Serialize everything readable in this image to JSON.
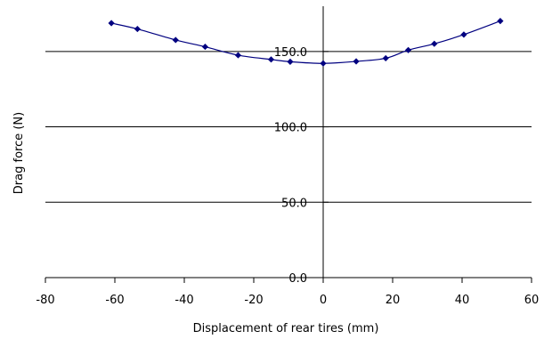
{
  "chart_data": {
    "type": "line",
    "xlabel": "Displacement of rear tires (mm)",
    "ylabel": "Drag force (N)",
    "xlim": [
      -80,
      60
    ],
    "ylim": [
      0,
      180
    ],
    "x_ticks": [
      -80,
      -60,
      -40,
      -20,
      0,
      20,
      40,
      60
    ],
    "x_tick_labels": [
      "-80",
      "-60",
      "-40",
      "-20",
      "0",
      "20",
      "40",
      "60"
    ],
    "y_ticks": [
      0,
      50,
      100,
      150
    ],
    "y_tick_labels": [
      "0.0",
      "50.0",
      "100.0",
      "150.0"
    ],
    "grid": "horizontal",
    "legend": "none",
    "series_color": "#000080",
    "marker": "diamond",
    "series": [
      {
        "x": [
          -61,
          -53.5,
          -42.5,
          -34,
          -24.5,
          -15,
          -9.5,
          0,
          9.5,
          18,
          24.5,
          32,
          40.5,
          51
        ],
        "y": [
          168.8,
          164.9,
          157.6,
          153.1,
          147.5,
          144.7,
          143.2,
          142.1,
          143.4,
          145.5,
          150.9,
          155.1,
          161.2,
          170.2
        ]
      }
    ]
  }
}
